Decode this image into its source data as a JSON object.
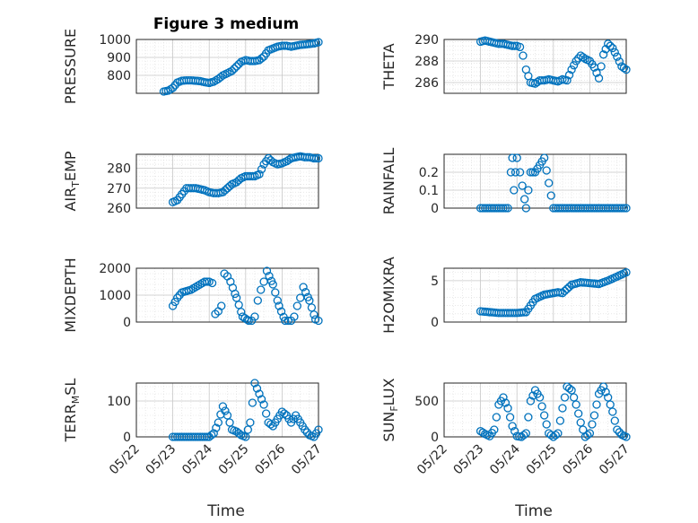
{
  "title": "Figure 3 medium",
  "xlabel": "Time",
  "xticklabels": [
    "05/22",
    "05/23",
    "05/24",
    "05/25",
    "05/26",
    "05/27"
  ],
  "colors": {
    "marker": "#0072BD",
    "axis": "#262626",
    "grid": "#d9d9d9"
  },
  "chart_data": [
    {
      "type": "scatter",
      "ylabel": "PRESSURE",
      "ylim": [
        700,
        1000
      ],
      "yticks": [
        800,
        900,
        1000
      ],
      "yticklabels": [
        "800",
        "900",
        "1000"
      ],
      "x": [
        "05/22 18:00",
        "05/22 21:00",
        "05/23 00:00",
        "05/23 03:00",
        "05/23 06:00",
        "05/23 09:00",
        "05/23 12:00",
        "05/23 15:00",
        "05/23 18:00",
        "05/23 21:00",
        "05/24 00:00",
        "05/24 03:00",
        "05/24 06:00",
        "05/24 09:00",
        "05/24 12:00",
        "05/24 15:00",
        "05/24 18:00",
        "05/24 21:00",
        "05/25 00:00",
        "05/25 03:00",
        "05/25 06:00",
        "05/25 09:00",
        "05/25 12:00",
        "05/25 15:00",
        "05/25 18:00",
        "05/25 21:00",
        "05/26 00:00",
        "05/26 03:00",
        "05/26 06:00",
        "05/26 09:00",
        "05/26 12:00",
        "05/26 15:00",
        "05/26 18:00",
        "05/26 21:00",
        "05/27 00:00"
      ],
      "y": [
        710,
        715,
        730,
        760,
        770,
        772,
        772,
        770,
        768,
        762,
        758,
        765,
        780,
        800,
        812,
        825,
        850,
        875,
        885,
        880,
        880,
        885,
        905,
        940,
        950,
        960,
        965,
        965,
        960,
        965,
        970,
        972,
        975,
        978,
        985
      ]
    },
    {
      "type": "scatter",
      "ylabel": "THETA",
      "ylim": [
        285,
        290
      ],
      "yticks": [
        286,
        288,
        290
      ],
      "yticklabels": [
        "286",
        "288",
        "290"
      ],
      "x": [
        "05/23 00:00",
        "05/23 03:00",
        "05/23 06:00",
        "05/23 09:00",
        "05/23 12:00",
        "05/23 15:00",
        "05/23 18:00",
        "05/23 21:00",
        "05/24 00:00",
        "05/24 02:00",
        "05/24 04:00",
        "05/24 06:00",
        "05/24 09:00",
        "05/24 12:00",
        "05/24 15:00",
        "05/24 18:00",
        "05/24 21:00",
        "05/25 00:00",
        "05/25 03:00",
        "05/25 06:00",
        "05/25 09:00",
        "05/25 12:00",
        "05/25 15:00",
        "05/25 18:00",
        "05/25 21:00",
        "05/26 00:00",
        "05/26 03:00",
        "05/26 06:00",
        "05/26 09:00",
        "05/26 12:00",
        "05/26 15:00",
        "05/26 18:00",
        "05/26 21:00",
        "05/27 00:00"
      ],
      "y": [
        289.8,
        289.9,
        289.8,
        289.7,
        289.6,
        289.6,
        289.5,
        289.4,
        289.4,
        289.3,
        288.5,
        287.2,
        286.0,
        285.9,
        286.2,
        286.2,
        286.3,
        286.2,
        286.1,
        286.3,
        286.2,
        287.2,
        288.0,
        288.5,
        288.2,
        288.0,
        287.4,
        286.4,
        288.6,
        289.6,
        289.2,
        288.4,
        287.5,
        287.2
      ]
    },
    {
      "type": "scatter",
      "ylabel": "AIR_TEMP",
      "ylim": [
        260,
        287
      ],
      "yticks": [
        260,
        270,
        280
      ],
      "yticklabels": [
        "260",
        "270",
        "280"
      ],
      "x": [
        "05/23 00:00",
        "05/23 03:00",
        "05/23 06:00",
        "05/23 09:00",
        "05/23 12:00",
        "05/23 15:00",
        "05/23 18:00",
        "05/23 21:00",
        "05/24 00:00",
        "05/24 03:00",
        "05/24 06:00",
        "05/24 09:00",
        "05/24 12:00",
        "05/24 15:00",
        "05/24 18:00",
        "05/24 21:00",
        "05/25 00:00",
        "05/25 03:00",
        "05/25 06:00",
        "05/25 09:00",
        "05/25 12:00",
        "05/25 15:00",
        "05/25 18:00",
        "05/25 21:00",
        "05/26 00:00",
        "05/26 03:00",
        "05/26 06:00",
        "05/26 09:00",
        "05/26 12:00",
        "05/26 15:00",
        "05/26 18:00",
        "05/26 21:00",
        "05/27 00:00"
      ],
      "y": [
        263,
        264,
        267,
        270,
        270,
        270,
        269.5,
        269,
        268,
        267.5,
        267.5,
        268,
        270,
        272,
        273,
        275,
        276,
        276,
        276,
        277,
        282,
        285,
        283,
        282,
        282.5,
        283.5,
        285,
        285.5,
        286,
        285.5,
        285.5,
        285,
        285
      ]
    },
    {
      "type": "scatter",
      "ylabel": "RAINFALL",
      "ylim": [
        0,
        0.3
      ],
      "yticks": [
        0,
        0.1,
        0.2
      ],
      "yticklabels": [
        "0",
        "0.1",
        "0.2"
      ],
      "x": [
        "05/23 00:00",
        "05/23 06:00",
        "05/23 12:00",
        "05/23 18:00",
        "05/23 20:00",
        "05/23 21:00",
        "05/23 22:00",
        "05/23 23:00",
        "05/24 00:00",
        "05/24 02:00",
        "05/24 06:00",
        "05/24 09:00",
        "05/24 12:00",
        "05/24 18:00",
        "05/25 00:00",
        "05/25 06:00",
        "05/25 12:00",
        "05/25 18:00",
        "05/26 00:00",
        "05/26 06:00",
        "05/26 12:00",
        "05/26 18:00",
        "05/27 00:00"
      ],
      "y": [
        0,
        0,
        0,
        0,
        0.2,
        0.28,
        0.1,
        0.2,
        0.28,
        0.2,
        0,
        0.2,
        0.2,
        0.28,
        0,
        0,
        0,
        0,
        0,
        0,
        0,
        0,
        0
      ]
    },
    {
      "type": "scatter",
      "ylabel": "MIXDEPTH",
      "ylim": [
        0,
        2000
      ],
      "yticks": [
        0,
        1000,
        2000
      ],
      "yticklabels": [
        "0",
        "1000",
        "2000"
      ],
      "x": [
        "05/23 00:00",
        "05/23 03:00",
        "05/23 06:00",
        "05/23 09:00",
        "05/23 12:00",
        "05/23 15:00",
        "05/23 18:00",
        "05/23 21:00",
        "05/24 00:00",
        "05/24 02:00",
        "05/24 04:00",
        "05/24 06:00",
        "05/24 08:00",
        "05/24 10:00",
        "05/24 12:00",
        "05/24 14:00",
        "05/24 18:00",
        "05/24 22:00",
        "05/25 02:00",
        "05/25 04:00",
        "05/25 06:00",
        "05/25 08:00",
        "05/25 10:00",
        "05/25 12:00",
        "05/25 14:00",
        "05/25 18:00",
        "05/25 22:00",
        "05/26 02:00",
        "05/26 04:00",
        "05/26 06:00",
        "05/26 08:00",
        "05/26 10:00",
        "05/26 12:00",
        "05/26 14:00",
        "05/26 18:00",
        "05/26 22:00",
        "05/27 00:00"
      ],
      "y": [
        600,
        900,
        1100,
        1150,
        1200,
        1300,
        1400,
        1500,
        1500,
        1450,
        300,
        400,
        600,
        1800,
        1700,
        1500,
        900,
        200,
        50,
        50,
        200,
        800,
        1200,
        1500,
        1900,
        1400,
        600,
        50,
        50,
        50,
        200,
        600,
        900,
        1300,
        800,
        100,
        50
      ]
    },
    {
      "type": "scatter",
      "ylabel": "H2OMIXRA",
      "ylim": [
        0,
        6.5
      ],
      "yticks": [
        0,
        5
      ],
      "yticklabels": [
        "0",
        "5"
      ],
      "x": [
        "05/23 00:00",
        "05/23 06:00",
        "05/23 12:00",
        "05/23 18:00",
        "05/24 00:00",
        "05/24 06:00",
        "05/24 09:00",
        "05/24 12:00",
        "05/24 18:00",
        "05/25 00:00",
        "05/25 03:00",
        "05/25 06:00",
        "05/25 12:00",
        "05/25 18:00",
        "05/26 00:00",
        "05/26 06:00",
        "05/26 12:00",
        "05/26 18:00",
        "05/27 00:00"
      ],
      "y": [
        1.3,
        1.2,
        1.1,
        1.1,
        1.1,
        1.2,
        2.0,
        2.8,
        3.3,
        3.5,
        3.6,
        3.5,
        4.5,
        4.8,
        4.7,
        4.6,
        5.0,
        5.5,
        6.0
      ]
    },
    {
      "type": "scatter",
      "ylabel": "TERR_MSL",
      "ylim": [
        0,
        150
      ],
      "yticks": [
        0,
        100
      ],
      "yticklabels": [
        "0",
        "100"
      ],
      "x": [
        "05/23 00:00",
        "05/23 06:00",
        "05/23 12:00",
        "05/23 18:00",
        "05/24 00:00",
        "05/24 03:00",
        "05/24 06:00",
        "05/24 09:00",
        "05/24 12:00",
        "05/24 15:00",
        "05/24 18:00",
        "05/24 21:00",
        "05/25 00:00",
        "05/25 03:00",
        "05/25 06:00",
        "05/25 09:00",
        "05/25 12:00",
        "05/25 15:00",
        "05/25 18:00",
        "05/25 21:00",
        "05/26 00:00",
        "05/26 03:00",
        "05/26 06:00",
        "05/26 09:00",
        "05/26 12:00",
        "05/26 15:00",
        "05/26 18:00",
        "05/26 21:00",
        "05/27 00:00"
      ],
      "y": [
        0,
        0,
        0,
        0,
        0,
        10,
        40,
        85,
        60,
        20,
        15,
        5,
        0,
        40,
        150,
        120,
        90,
        40,
        30,
        50,
        70,
        60,
        40,
        60,
        40,
        20,
        5,
        0,
        20
      ]
    },
    {
      "type": "scatter",
      "ylabel": "SUN_FLUX",
      "ylim": [
        0,
        750
      ],
      "yticks": [
        0,
        500
      ],
      "yticklabels": [
        "0",
        "500"
      ],
      "x": [
        "05/23 00:00",
        "05/23 03:00",
        "05/23 06:00",
        "05/23 09:00",
        "05/23 12:00",
        "05/23 15:00",
        "05/23 18:00",
        "05/23 21:00",
        "05/24 00:00",
        "05/24 03:00",
        "05/24 06:00",
        "05/24 09:00",
        "05/24 12:00",
        "05/24 15:00",
        "05/24 18:00",
        "05/24 21:00",
        "05/25 00:00",
        "05/25 03:00",
        "05/25 06:00",
        "05/25 09:00",
        "05/25 12:00",
        "05/25 15:00",
        "05/25 18:00",
        "05/25 21:00",
        "05/26 00:00",
        "05/26 03:00",
        "05/26 06:00",
        "05/26 09:00",
        "05/26 12:00",
        "05/26 15:00",
        "05/26 18:00",
        "05/26 21:00",
        "05/27 00:00"
      ],
      "y": [
        80,
        40,
        10,
        100,
        450,
        550,
        400,
        150,
        10,
        0,
        50,
        500,
        650,
        550,
        300,
        50,
        0,
        50,
        400,
        700,
        650,
        450,
        200,
        0,
        50,
        300,
        600,
        700,
        550,
        350,
        100,
        30,
        0
      ]
    }
  ]
}
